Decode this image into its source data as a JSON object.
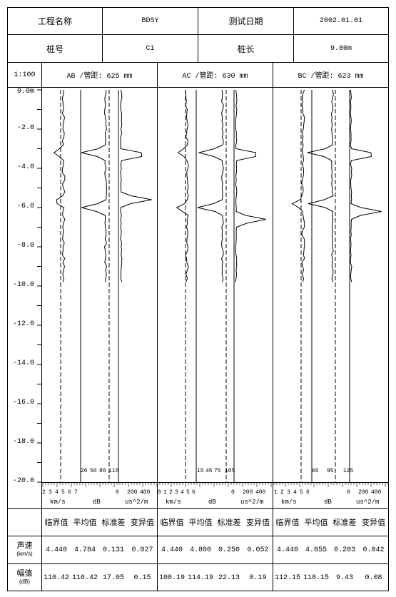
{
  "header": {
    "project_label": "工程名称",
    "project_value": "BDSY",
    "date_label": "测试日期",
    "date_value": "2002.01.01",
    "pile_label": "桩号",
    "pile_value": "C1",
    "length_label": "桩长",
    "length_value": "9.80m",
    "scale": "1:100"
  },
  "profiles": [
    {
      "title": "AB /管距: 625 mm"
    },
    {
      "title": "AC /管距: 630 mm"
    },
    {
      "title": "BC /管距: 623 mm"
    }
  ],
  "depth_labels": [
    "0.0m",
    "-2.0",
    "-4.0",
    "-6.0",
    "-8.0",
    "-10.0",
    "-12.0",
    "-14.0",
    "-16.0",
    "-18.0",
    "-20.0"
  ],
  "axis": {
    "velocity_unit": "km/s",
    "amp_unit": "dB",
    "pss_unit": "us^2/m",
    "pss_ticks": [
      "0",
      "200",
      "400"
    ],
    "groups": [
      {
        "vel_ticks": [
          "2",
          "3",
          "4",
          "5",
          "6",
          "7"
        ],
        "amp_ticks": [
          "20",
          "50",
          "80",
          "110"
        ]
      },
      {
        "vel_ticks": [
          "0",
          "1",
          "2",
          "3",
          "4",
          "5",
          "6"
        ],
        "amp_ticks": [
          "15",
          "45",
          "75",
          "105"
        ]
      },
      {
        "vel_ticks": [
          "1",
          "2",
          "3",
          "4",
          "5",
          "6"
        ],
        "amp_ticks": [
          "65",
          "95",
          "125"
        ]
      }
    ]
  },
  "stats": {
    "col_headers": [
      "临界值",
      "平均值",
      "标准差",
      "变异值",
      "临界值",
      "平均值",
      "标准差",
      "变异值",
      "临界值",
      "平均值",
      "标准差",
      "变异值"
    ],
    "velocity_label": "声速",
    "velocity_unit": "(km/s)",
    "velocity": [
      "4.440",
      "4.784",
      "0.131",
      "0.027",
      "4.440",
      "4.800",
      "0.250",
      "0.052",
      "4.440",
      "4.855",
      "0.203",
      "0.042"
    ],
    "amp_label": "幅值",
    "amp_unit": "(dB)",
    "amp": [
      "110.42",
      "116.42",
      "17.05",
      "0.15",
      "108.19",
      "114.19",
      "22.13",
      "0.19",
      "112.15",
      "118.15",
      "9.43",
      "0.08"
    ]
  },
  "colors": {
    "line": "#000000",
    "background": "#ffffff"
  }
}
